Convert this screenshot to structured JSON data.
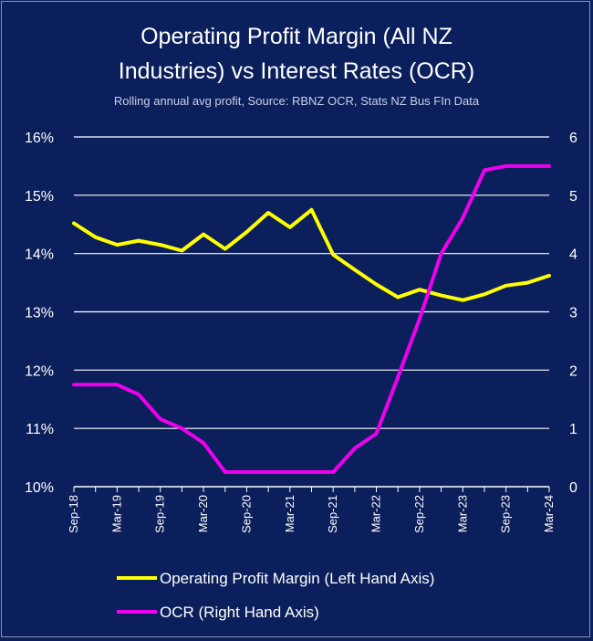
{
  "title_line1": "Operating Profit Margin (All NZ",
  "title_line2": "Industries) vs Interest Rates (OCR)",
  "subtitle": "Rolling annual avg profit, Source: RBNZ OCR, Stats NZ Bus FIn Data",
  "colors": {
    "background": "#0b1f5c",
    "margin_series": "#ffff00",
    "ocr_series": "#ee00ee",
    "grid": "#ffffff"
  },
  "chart_data": {
    "type": "line",
    "title": "Operating Profit Margin (All NZ Industries) vs Interest Rates (OCR)",
    "subtitle": "Rolling annual avg profit, Source: RBNZ OCR, Stats NZ Bus FIn Data",
    "grid": "horizontal",
    "legend_position": "bottom",
    "x_tick_labels": [
      "Sep-18",
      "Mar-19",
      "Sep-19",
      "Mar-20",
      "Sep-20",
      "Mar-21",
      "Sep-21",
      "Mar-22",
      "Sep-22",
      "Mar-23",
      "Sep-23",
      "Mar-24"
    ],
    "x": [
      "Sep-18",
      "Dec-18",
      "Mar-19",
      "Jun-19",
      "Sep-19",
      "Dec-19",
      "Mar-20",
      "Jun-20",
      "Sep-20",
      "Dec-20",
      "Mar-21",
      "Jun-21",
      "Sep-21",
      "Dec-21",
      "Mar-22",
      "Jun-22",
      "Sep-22",
      "Dec-22",
      "Mar-23",
      "Jun-23",
      "Sep-23",
      "Dec-23",
      "Mar-24"
    ],
    "y_left": {
      "ticks": [
        "10%",
        "11%",
        "12%",
        "13%",
        "14%",
        "15%",
        "16%"
      ],
      "tick_values": [
        10,
        11,
        12,
        13,
        14,
        15,
        16
      ],
      "range": [
        10,
        16
      ]
    },
    "y_right": {
      "ticks": [
        "0",
        "1",
        "2",
        "3",
        "4",
        "5",
        "6"
      ],
      "tick_values": [
        0,
        1,
        2,
        3,
        4,
        5,
        6
      ],
      "range": [
        0,
        6
      ]
    },
    "series": [
      {
        "name": "Operating Profit Margin (Left Hand Axis)",
        "axis": "left",
        "values": [
          14.52,
          14.28,
          14.15,
          14.22,
          14.15,
          14.05,
          14.33,
          14.08,
          14.37,
          14.7,
          14.45,
          14.75,
          13.98,
          13.72,
          13.47,
          13.25,
          13.38,
          13.28,
          13.2,
          13.3,
          13.45,
          13.5,
          13.62
        ]
      },
      {
        "name": "OCR (Right Hand Axis)",
        "axis": "right",
        "values": [
          1.75,
          1.75,
          1.75,
          1.58,
          1.16,
          1.0,
          0.75,
          0.25,
          0.25,
          0.25,
          0.25,
          0.25,
          0.25,
          0.66,
          0.91,
          1.88,
          2.88,
          4.0,
          4.61,
          5.43,
          5.5,
          5.5,
          5.5
        ]
      }
    ]
  }
}
